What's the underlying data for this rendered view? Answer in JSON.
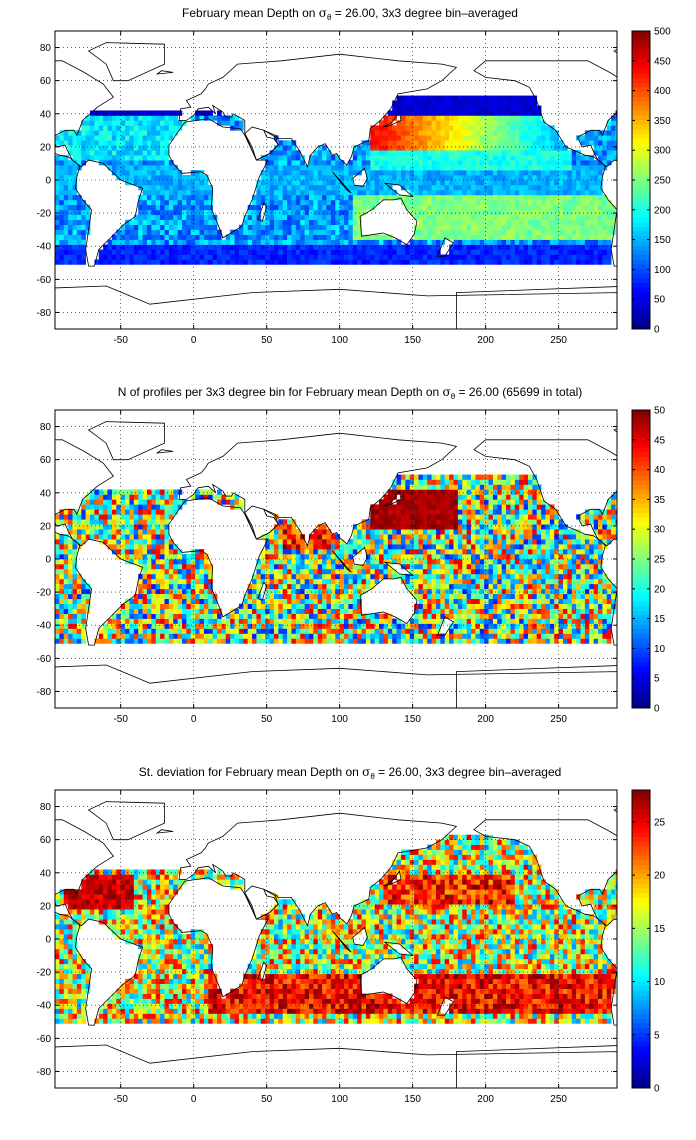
{
  "chart_data": [
    {
      "type": "heatmap",
      "title_parts": {
        "before": "February mean Depth on ",
        "symbol": "σ",
        "subscript": "θ",
        "after": " = 26.00, 3x3 degree bin–averaged"
      },
      "xlabel": "",
      "ylabel": "",
      "xlim": [
        -95,
        290
      ],
      "ylim": [
        -90,
        90
      ],
      "x_ticks": [
        -50,
        0,
        50,
        100,
        150,
        200,
        250
      ],
      "y_ticks": [
        -80,
        -60,
        -40,
        -20,
        0,
        20,
        40,
        60,
        80
      ],
      "colorbar": {
        "min": 0,
        "max": 500,
        "ticks": [
          0,
          50,
          100,
          150,
          200,
          250,
          300,
          350,
          400,
          450,
          500
        ]
      },
      "colormap": "jet",
      "grid": true,
      "field": "depth"
    },
    {
      "type": "heatmap",
      "title_parts": {
        "before": "N of profiles per 3x3 degree bin for February mean Depth on ",
        "symbol": "σ",
        "subscript": "θ",
        "after": " = 26.00 (65699 in total)"
      },
      "xlabel": "",
      "ylabel": "",
      "xlim": [
        -95,
        290
      ],
      "ylim": [
        -90,
        90
      ],
      "x_ticks": [
        -50,
        0,
        50,
        100,
        150,
        200,
        250
      ],
      "y_ticks": [
        -80,
        -60,
        -40,
        -20,
        0,
        20,
        40,
        60,
        80
      ],
      "colorbar": {
        "min": 0,
        "max": 50,
        "ticks": [
          0,
          5,
          10,
          15,
          20,
          25,
          30,
          35,
          40,
          45,
          50
        ]
      },
      "colormap": "jet",
      "grid": true,
      "field": "count"
    },
    {
      "type": "heatmap",
      "title_parts": {
        "before": "St. deviation for February mean Depth on ",
        "symbol": "σ",
        "subscript": "θ",
        "after": " = 26.00, 3x3 degree bin–averaged"
      },
      "xlabel": "",
      "ylabel": "",
      "xlim": [
        -95,
        290
      ],
      "ylim": [
        -90,
        90
      ],
      "x_ticks": [
        -50,
        0,
        50,
        100,
        150,
        200,
        250
      ],
      "y_ticks": [
        -80,
        -60,
        -40,
        -20,
        0,
        20,
        40,
        60,
        80
      ],
      "colorbar": {
        "min": 0,
        "max": 28,
        "ticks": [
          0,
          5,
          10,
          15,
          20,
          25
        ]
      },
      "colormap": "jet",
      "grid": true,
      "field": "std"
    }
  ]
}
